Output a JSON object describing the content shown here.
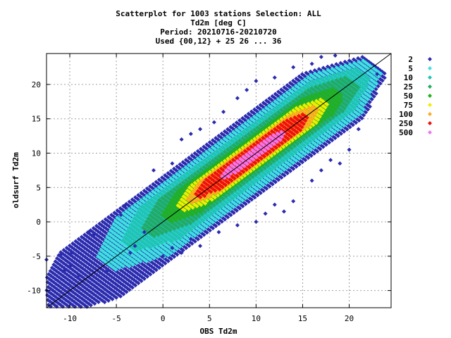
{
  "chart_data": {
    "type": "scatter",
    "title_lines": [
      "Scatterplot for 1003 stations Selection: ALL",
      "Td2m [deg C]",
      "Period: 20210716-20210720",
      "Used {00,12} + 25 26 ... 36"
    ],
    "xlabel": "OBS Td2m",
    "ylabel": "oldsurf Td2m",
    "xlim": [
      -12.5,
      24.5
    ],
    "ylim": [
      -12.5,
      24.5
    ],
    "xticks": [
      -10,
      -5,
      0,
      5,
      10,
      15,
      20
    ],
    "yticks": [
      -10,
      -5,
      0,
      5,
      10,
      15,
      20
    ],
    "grid": true,
    "reference_line": "y = x",
    "legend_position": "right",
    "legend": [
      {
        "label": "2",
        "color": "#2b2baf"
      },
      {
        "label": "5",
        "color": "#3fe0e0"
      },
      {
        "label": "10",
        "color": "#20c4b4"
      },
      {
        "label": "25",
        "color": "#22aa66"
      },
      {
        "label": "50",
        "color": "#22b022"
      },
      {
        "label": "75",
        "color": "#eeee00"
      },
      {
        "label": "100",
        "color": "#ffaa22"
      },
      {
        "label": "250",
        "color": "#ee1111"
      },
      {
        "label": "500",
        "color": "#ee77ee"
      }
    ],
    "density_bands": [
      {
        "class": "2",
        "color": "#2b2baf",
        "along": [
          -12.5,
          23.0
        ],
        "halfwidth": 4.4
      },
      {
        "class": "5",
        "color": "#3fe0e0",
        "along": [
          -6,
          22.5
        ],
        "halfwidth": 3.7
      },
      {
        "class": "10",
        "color": "#20c4b4",
        "along": [
          -3.5,
          21.5
        ],
        "halfwidth": 3.0
      },
      {
        "class": "25",
        "color": "#22aa66",
        "along": [
          -1.5,
          20.5
        ],
        "halfwidth": 2.4
      },
      {
        "class": "50",
        "color": "#22b022",
        "along": [
          0.5,
          19.0
        ],
        "halfwidth": 1.9
      },
      {
        "class": "75",
        "color": "#eeee00",
        "along": [
          2.0,
          17.5
        ],
        "halfwidth": 1.5
      },
      {
        "class": "100",
        "color": "#ffaa22",
        "along": [
          3.0,
          16.5
        ],
        "halfwidth": 1.2
      },
      {
        "class": "250",
        "color": "#ee1111",
        "along": [
          3.8,
          15.5
        ],
        "halfwidth": 1.0
      },
      {
        "class": "500",
        "color": "#ee77ee",
        "along": [
          6.5,
          13.0
        ],
        "halfwidth": 0.55
      }
    ],
    "outlier_points": [
      [
        -12.5,
        -5.5
      ],
      [
        -11,
        -4.8
      ],
      [
        -10.5,
        -7
      ],
      [
        -10,
        -6.5
      ],
      [
        -9.8,
        -4.5
      ],
      [
        -9,
        -7.8
      ],
      [
        -8,
        -1.5
      ],
      [
        -7.5,
        -2
      ],
      [
        -6,
        -7.2
      ],
      [
        -4.5,
        1
      ],
      [
        -4,
        2.5
      ],
      [
        -3.5,
        -4.5
      ],
      [
        -3,
        -3.5
      ],
      [
        -2,
        -1.5
      ],
      [
        -1,
        7.5
      ],
      [
        0,
        -5
      ],
      [
        1,
        8.5
      ],
      [
        2,
        12
      ],
      [
        3,
        12.8
      ],
      [
        4,
        13.5
      ],
      [
        5.5,
        14.5
      ],
      [
        6.5,
        16
      ],
      [
        8,
        18
      ],
      [
        9,
        19.2
      ],
      [
        10,
        20.5
      ],
      [
        12,
        21
      ],
      [
        14,
        22.5
      ],
      [
        16,
        23
      ],
      [
        17,
        24
      ],
      [
        18.5,
        24.2
      ],
      [
        19,
        8.5
      ],
      [
        20,
        10.5
      ],
      [
        21,
        13.5
      ],
      [
        22,
        17
      ],
      [
        23,
        21.5
      ],
      [
        13,
        1.5
      ],
      [
        14,
        3
      ],
      [
        12,
        2.5
      ],
      [
        10,
        0
      ],
      [
        8,
        -0.5
      ],
      [
        6,
        -1.5
      ],
      [
        4,
        -3.5
      ],
      [
        2,
        -4.5
      ],
      [
        16,
        6
      ],
      [
        17,
        7.5
      ],
      [
        18,
        9
      ],
      [
        11,
        1.2
      ],
      [
        1,
        -3.8
      ],
      [
        3,
        -2.5
      ]
    ]
  }
}
